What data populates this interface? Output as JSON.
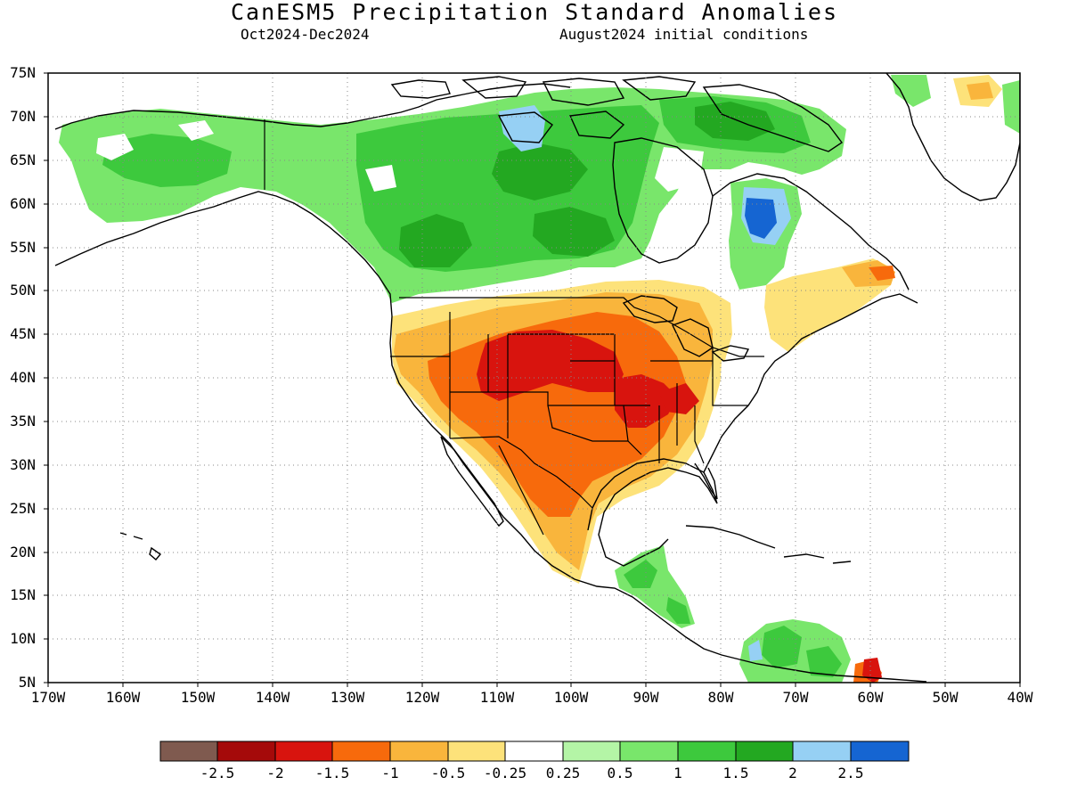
{
  "header": {
    "title": "CanESM5 Precipitation Standard Anomalies",
    "period": "Oct2024-Dec2024",
    "initial_conditions": "August2024 initial conditions"
  },
  "axes": {
    "lat_labels": [
      "75N",
      "70N",
      "65N",
      "60N",
      "55N",
      "50N",
      "45N",
      "40N",
      "35N",
      "30N",
      "25N",
      "20N",
      "15N",
      "10N",
      "5N"
    ],
    "lon_labels": [
      "170W",
      "160W",
      "150W",
      "140W",
      "130W",
      "120W",
      "110W",
      "100W",
      "90W",
      "80W",
      "70W",
      "60W",
      "50W",
      "40W"
    ],
    "lat_range": [
      5,
      75
    ],
    "lon_range": [
      -170,
      -40
    ],
    "grid": "dotted"
  },
  "colorbar": {
    "colors": [
      "#7f5a4f",
      "#a50a0a",
      "#d8140e",
      "#f76a0c",
      "#f9b53c",
      "#fde27a",
      "#ffffff",
      "#b4f5a6",
      "#79e66b",
      "#3dc93d",
      "#23a821",
      "#96d0f4",
      "#1565d2"
    ],
    "tick_labels": [
      "-2.5",
      "-2",
      "-1.5",
      "-1",
      "-0.5",
      "-0.25",
      "0.25",
      "0.5",
      "1",
      "1.5",
      "2",
      "2.5"
    ]
  },
  "anomaly_regions": [
    {
      "name": "Alaska and northwestern Canada",
      "category": "0.5 to 1"
    },
    {
      "name": "Canadian Arctic Archipelago",
      "category": "1 to 1.5"
    },
    {
      "name": "Central Canada",
      "category": "1.5 to 2"
    },
    {
      "name": "Northern Quebec",
      "category": "above 2.5"
    },
    {
      "name": "Central Great Plains",
      "category": "-2 to -1.5"
    },
    {
      "name": "Southern Plains and Mexico",
      "category": "-1.5 to -1"
    },
    {
      "name": "US West and Southeast",
      "category": "-1 to -0.5"
    },
    {
      "name": "Central America",
      "category": "0.5 to 1"
    },
    {
      "name": "Venezuela coast",
      "category": "-2 to -1.5"
    }
  ]
}
